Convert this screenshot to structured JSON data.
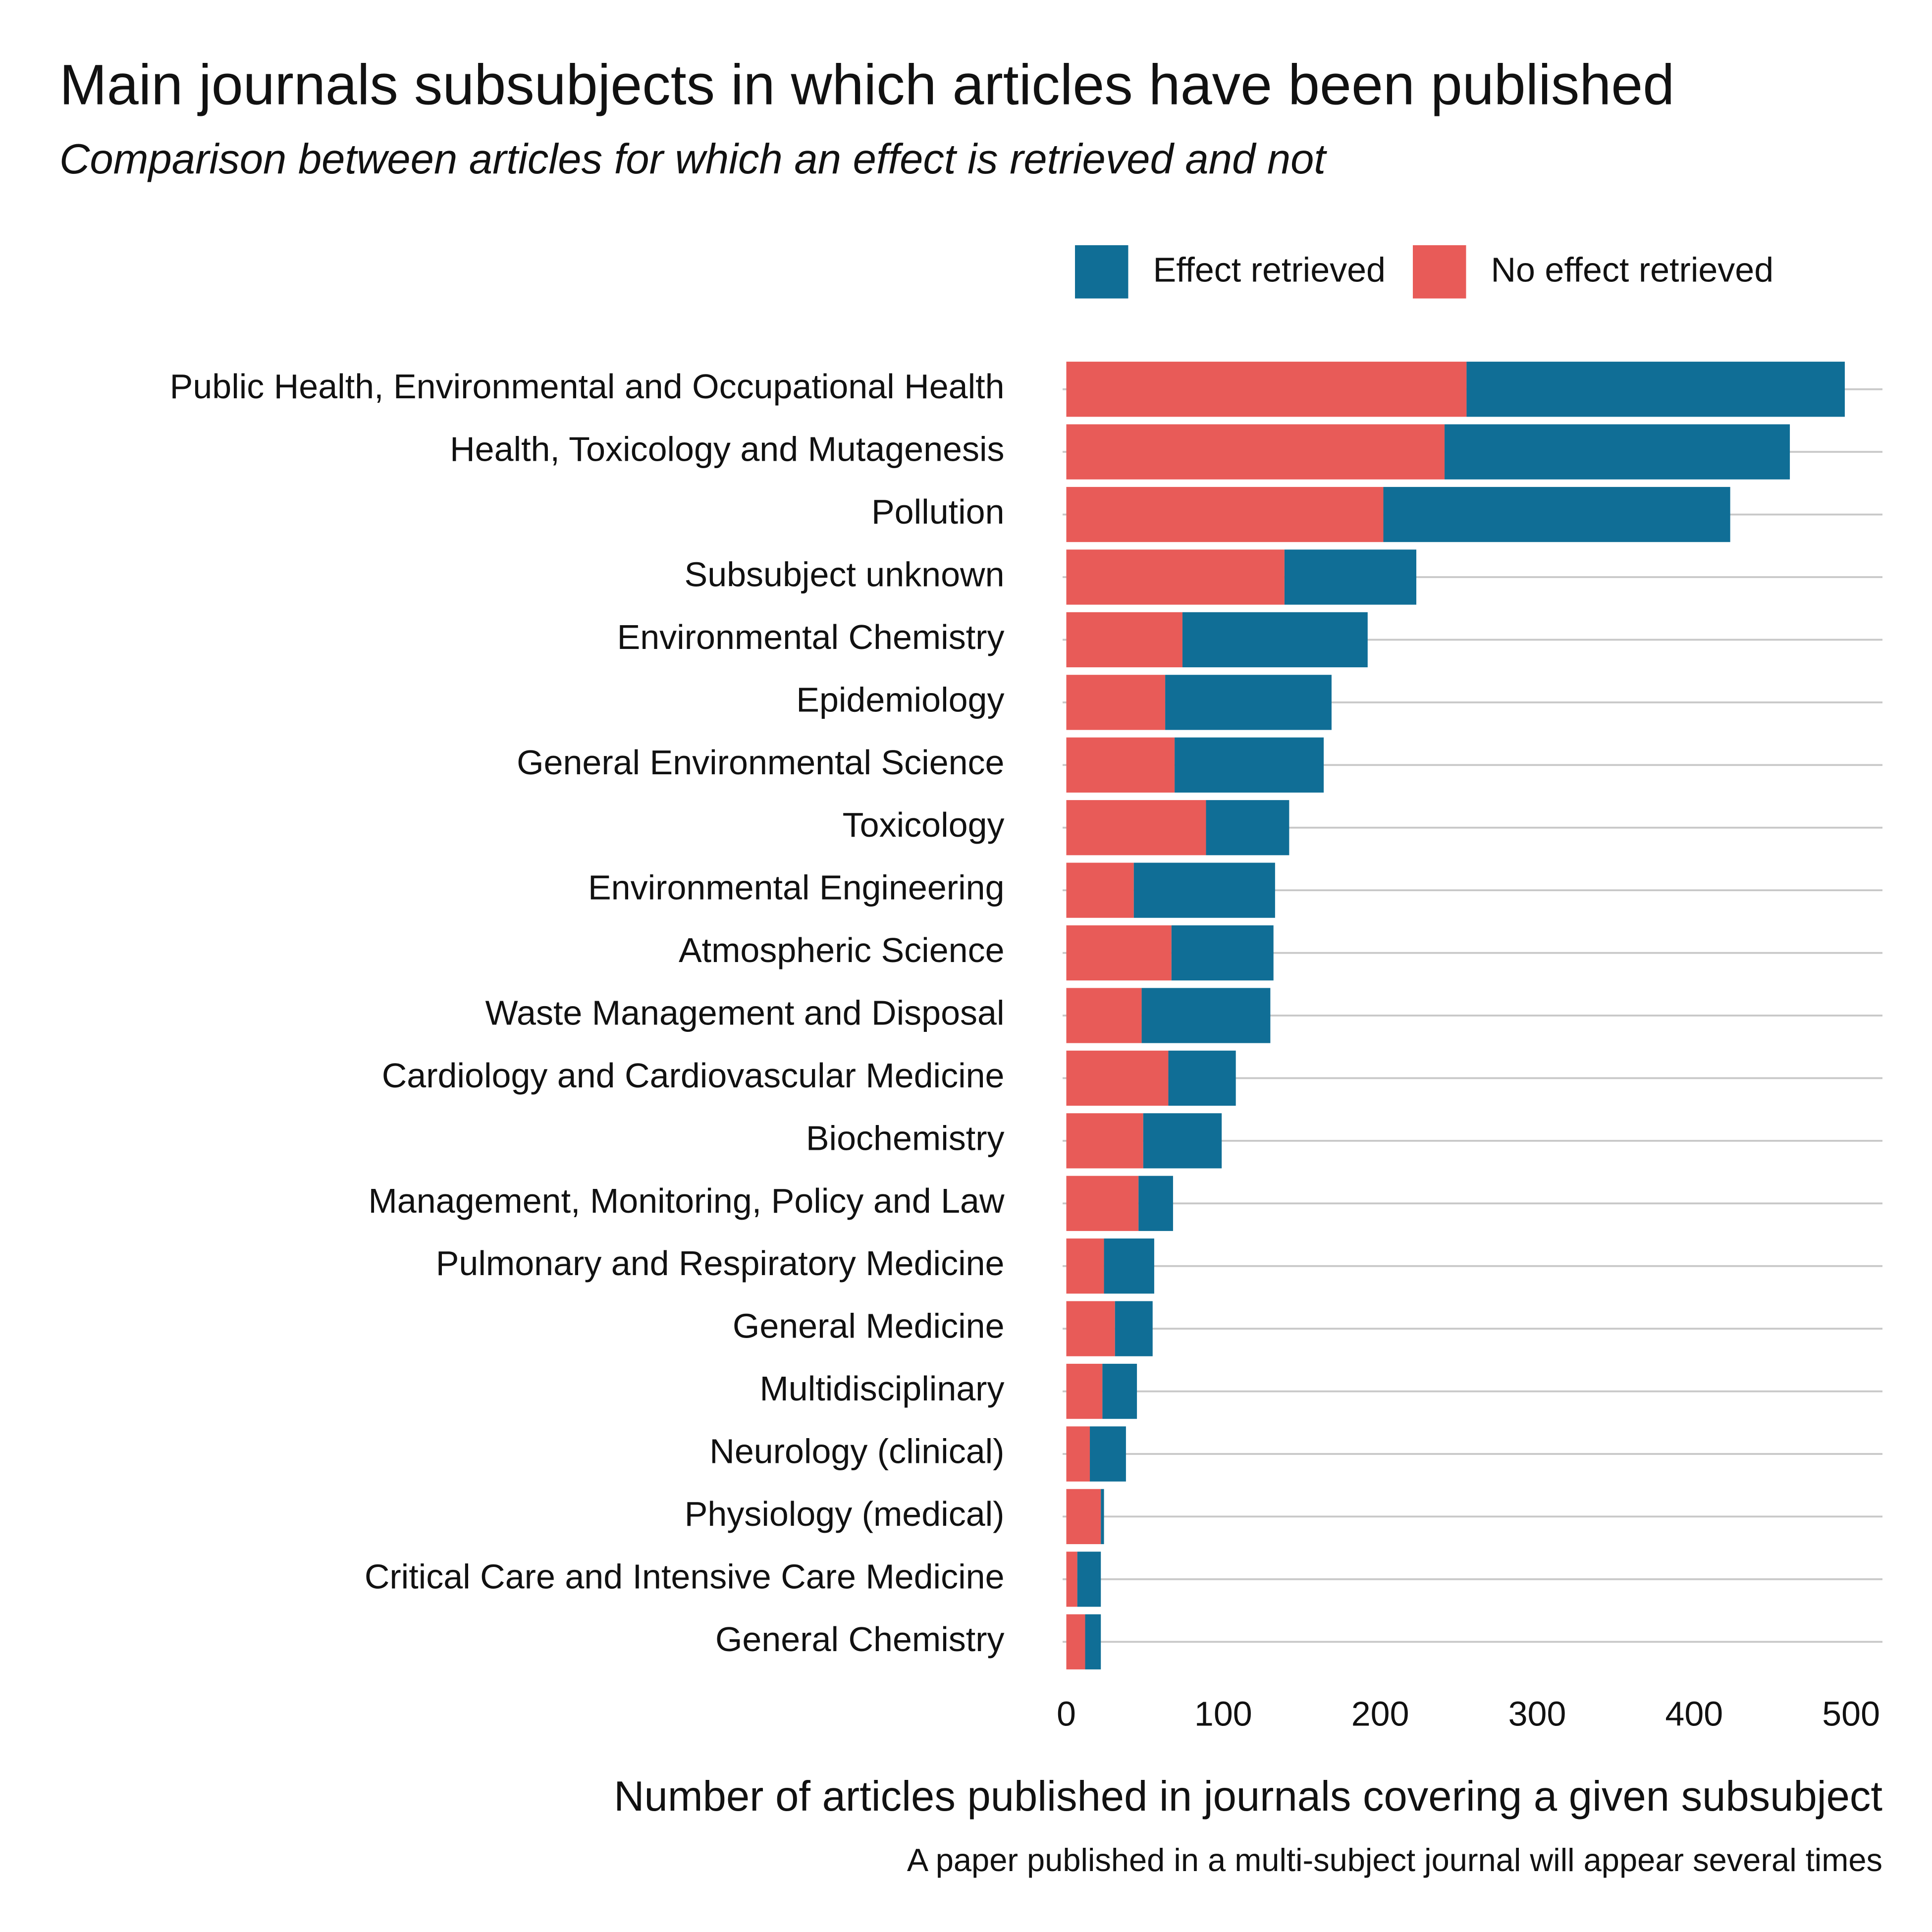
{
  "chart_data": {
    "type": "stacked-bar-horizontal",
    "title": "Main journals subsubjects in which articles have been published",
    "subtitle": "Comparison between articles for which an effect is retrieved and not",
    "x_label": "Number of articles published in journals covering a given subsubject",
    "caption": "A paper published in a multi-subject journal will appear several times",
    "categories": [
      "Public Health, Environmental and Occupational Health",
      "Health, Toxicology and Mutagenesis",
      "Pollution",
      "Subsubject unknown",
      "Environmental Chemistry",
      "Epidemiology",
      "General Environmental Science",
      "Toxicology",
      "Environmental Engineering",
      "Atmospheric Science",
      "Waste Management and Disposal",
      "Cardiology and Cardiovascular Medicine",
      "Biochemistry",
      "Management, Monitoring, Policy and Law",
      "Pulmonary and Respiratory Medicine",
      "General Medicine",
      "Multidisciplinary",
      "Neurology (clinical)",
      "Physiology (medical)",
      "Critical Care and Intensive Care Medicine",
      "General Chemistry"
    ],
    "series": [
      {
        "name": "Effect retrieved",
        "color": "#106e96",
        "values": [
          241,
          220,
          221,
          84,
          118,
          106,
          95,
          53,
          90,
          65,
          82,
          43,
          50,
          22,
          32,
          24,
          22,
          23,
          2,
          15,
          10
        ]
      },
      {
        "name": "No effect retrieved",
        "color": "#e85b58",
        "values": [
          255,
          241,
          202,
          139,
          74,
          63,
          69,
          89,
          43,
          67,
          48,
          65,
          49,
          46,
          24,
          31,
          23,
          15,
          22,
          7,
          12
        ]
      }
    ],
    "xlim": [
      0,
      520
    ],
    "xticks": [
      0,
      100,
      200,
      300,
      400,
      500
    ],
    "grid": true,
    "legend_position": "top-right"
  }
}
